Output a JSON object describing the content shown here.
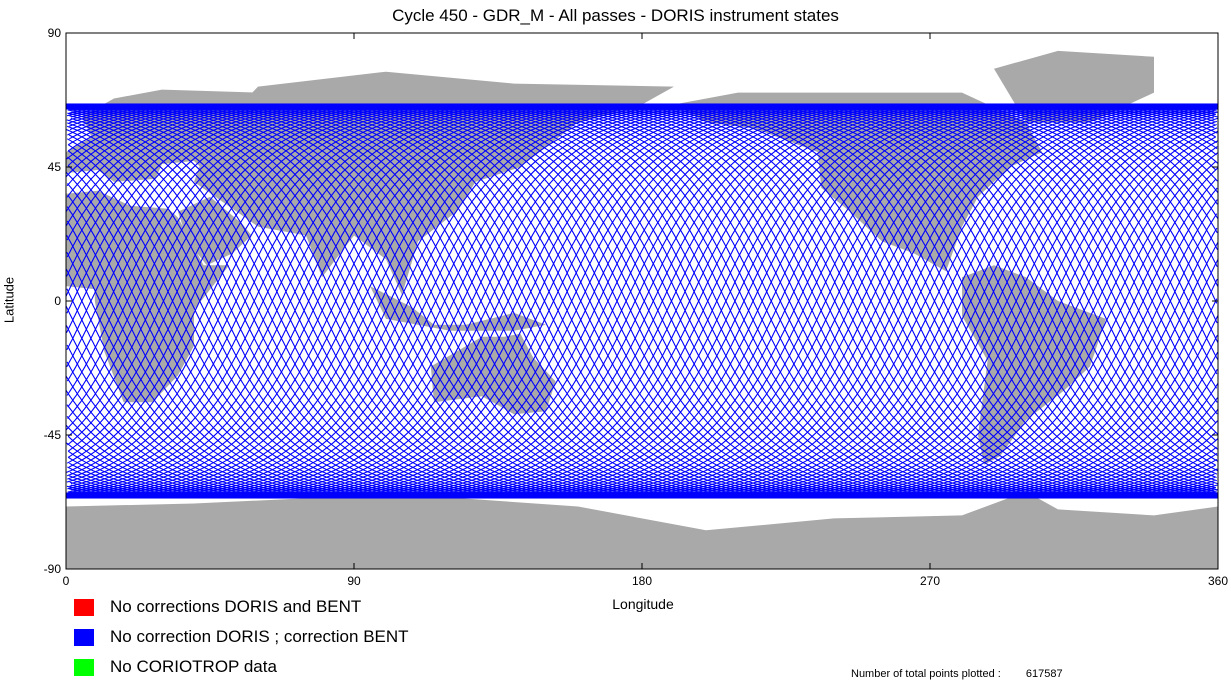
{
  "title": "Cycle 450 - GDR_M -  All passes - DORIS instrument states",
  "map": {
    "x_label": "Longitude",
    "y_label": "Latitude",
    "x_range": [
      0,
      360
    ],
    "y_range": [
      -90,
      90
    ],
    "x_ticks": [
      "0",
      "90",
      "180",
      "270",
      "360"
    ],
    "y_ticks": [
      "90",
      "45",
      "0",
      "-45",
      "-90"
    ],
    "track_lat_limit": 66,
    "land_color": "#a9a9a9",
    "ocean_color": "#ffffff",
    "track_color": "#0000ff"
  },
  "legend": [
    {
      "label": "No corrections DORIS and BENT",
      "color": "#ff0000"
    },
    {
      "label": "No correction DORIS ; correction BENT",
      "color": "#0000ff"
    },
    {
      "label": "No CORIOTROP data",
      "color": "#00ff00"
    }
  ],
  "totals": {
    "label": "Number of total points plotted :",
    "value": "617587"
  }
}
